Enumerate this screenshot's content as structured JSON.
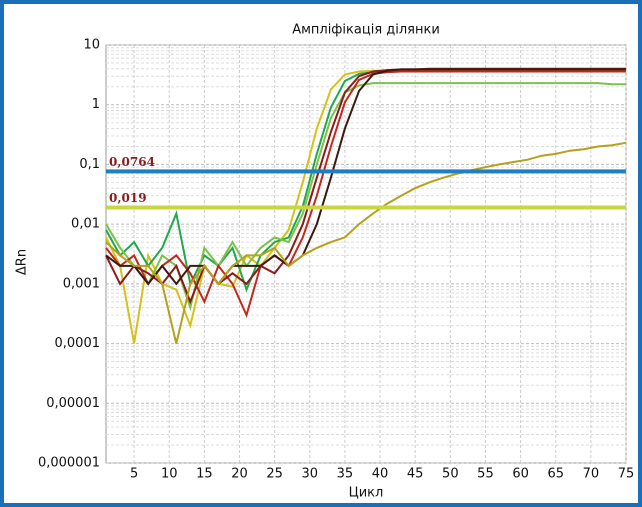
{
  "chart_data": {
    "type": "line",
    "title": "Ампліфікація ділянки",
    "xlabel": "Цикл",
    "ylabel": "ΔRn",
    "log_y": true,
    "grid": true,
    "xlim": [
      1,
      75
    ],
    "xticks": [
      5,
      10,
      15,
      20,
      25,
      30,
      35,
      40,
      45,
      50,
      55,
      60,
      65,
      70,
      75
    ],
    "ylim": [
      1e-06,
      10
    ],
    "yticks": [
      {
        "value": 1e-06,
        "label": "0,000001"
      },
      {
        "value": 1e-05,
        "label": "0,00001"
      },
      {
        "value": 0.0001,
        "label": "0,0001"
      },
      {
        "value": 0.001,
        "label": "0,001"
      },
      {
        "value": 0.01,
        "label": "0,01"
      },
      {
        "value": 0.1,
        "label": "0,1"
      },
      1,
      10
    ],
    "thresholds": [
      {
        "value": 0.0764,
        "label": "0,0764",
        "color": "#1f7fc4"
      },
      {
        "value": 0.019,
        "label": "0,019",
        "color": "#c9d642"
      }
    ],
    "x": [
      1,
      3,
      5,
      7,
      9,
      11,
      13,
      15,
      17,
      19,
      21,
      23,
      25,
      27,
      29,
      31,
      33,
      35,
      37,
      39,
      41,
      43,
      45,
      47,
      49,
      51,
      53,
      55,
      57,
      59,
      61,
      63,
      65,
      67,
      69,
      71,
      73,
      75
    ],
    "series": [
      {
        "color": "#d4c21a",
        "values": [
          0.006,
          0.002,
          0.0001,
          0.003,
          0.001,
          0.0008,
          0.0002,
          0.002,
          0.001,
          0.0009,
          0.003,
          0.002,
          0.004,
          0.008,
          0.05,
          0.4,
          1.8,
          3.2,
          3.6,
          3.7,
          3.7,
          3.7,
          3.7,
          3.7,
          3.7,
          3.7,
          3.7,
          3.7,
          3.7,
          3.7,
          3.7,
          3.7,
          3.7,
          3.7,
          3.7,
          3.7,
          3.7,
          3.7
        ]
      },
      {
        "color": "#22a84a",
        "values": [
          0.008,
          0.003,
          0.005,
          0.002,
          0.004,
          0.015,
          0.001,
          0.003,
          0.002,
          0.004,
          0.0008,
          0.003,
          0.005,
          0.006,
          0.02,
          0.15,
          0.9,
          2.5,
          3.3,
          3.5,
          3.6,
          3.6,
          3.6,
          3.6,
          3.6,
          3.6,
          3.6,
          3.6,
          3.6,
          3.6,
          3.6,
          3.6,
          3.6,
          3.6,
          3.6,
          3.6,
          3.6,
          3.6
        ]
      },
      {
        "color": "#7cc24a",
        "values": [
          0.01,
          0.004,
          0.002,
          0.001,
          0.003,
          0.002,
          0.0004,
          0.004,
          0.002,
          0.005,
          0.002,
          0.004,
          0.006,
          0.005,
          0.015,
          0.1,
          0.6,
          1.6,
          2.1,
          2.3,
          2.3,
          2.3,
          2.3,
          2.3,
          2.3,
          2.3,
          2.3,
          2.3,
          2.3,
          2.3,
          2.3,
          2.3,
          2.3,
          2.3,
          2.3,
          2.3,
          2.2,
          2.2
        ]
      },
      {
        "color": "#c0281e",
        "values": [
          0.004,
          0.002,
          0.003,
          0.001,
          0.002,
          0.003,
          0.0015,
          0.0005,
          0.002,
          0.001,
          0.0003,
          0.002,
          0.003,
          0.002,
          0.006,
          0.03,
          0.2,
          1.1,
          2.6,
          3.3,
          3.5,
          3.6,
          3.6,
          3.6,
          3.6,
          3.6,
          3.6,
          3.6,
          3.6,
          3.6,
          3.6,
          3.6,
          3.6,
          3.6,
          3.6,
          3.6,
          3.6,
          3.6
        ]
      },
      {
        "color": "#8b1a1a",
        "values": [
          0.003,
          0.001,
          0.002,
          0.0015,
          0.001,
          0.002,
          0.0005,
          0.002,
          0.001,
          0.0015,
          0.001,
          0.002,
          0.0015,
          0.003,
          0.01,
          0.06,
          0.35,
          1.6,
          3.0,
          3.6,
          3.8,
          3.9,
          3.9,
          4,
          4,
          4,
          4,
          4,
          4,
          4,
          4,
          4,
          4,
          4,
          4,
          4,
          4,
          4
        ]
      },
      {
        "color": "#3a1a10",
        "values": [
          0.003,
          0.002,
          0.002,
          0.001,
          0.002,
          0.001,
          0.002,
          0.002,
          0.001,
          0.002,
          0.002,
          0.002,
          0.003,
          0.002,
          0.003,
          0.01,
          0.06,
          0.4,
          1.7,
          3.2,
          3.7,
          3.9,
          3.9,
          3.9,
          3.9,
          3.9,
          3.9,
          3.9,
          3.9,
          3.9,
          3.9,
          3.9,
          3.9,
          3.9,
          3.9,
          3.9,
          3.9,
          3.9
        ]
      },
      {
        "color": "#b5a21a",
        "values": [
          0.005,
          0.003,
          0.002,
          0.002,
          0.001,
          0.0001,
          0.001,
          0.002,
          0.001,
          0.002,
          0.003,
          0.003,
          0.004,
          0.002,
          0.003,
          0.004,
          0.005,
          0.006,
          0.01,
          0.015,
          0.022,
          0.03,
          0.04,
          0.05,
          0.06,
          0.07,
          0.08,
          0.09,
          0.1,
          0.11,
          0.12,
          0.14,
          0.15,
          0.17,
          0.18,
          0.2,
          0.21,
          0.23
        ]
      }
    ]
  }
}
